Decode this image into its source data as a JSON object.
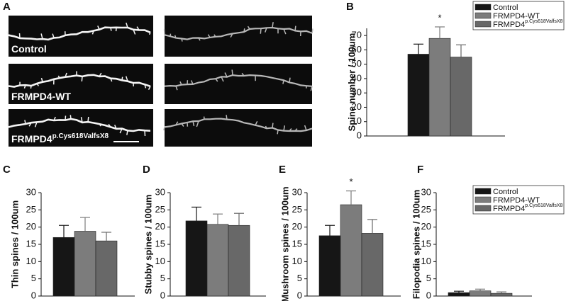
{
  "figure_a": {
    "panel": "A",
    "images": [
      {
        "label": "Control"
      },
      {
        "label": "FRMPD4-WT"
      },
      {
        "label": "FRMPD4",
        "label_sup": "p.Cys618ValfsX8"
      }
    ]
  },
  "chart_data": [
    {
      "type": "bar",
      "panel": "B",
      "ylabel": "Spine number / 100um",
      "ylim": [
        0,
        75
      ],
      "yticks": [
        0,
        10,
        20,
        30,
        40,
        50,
        60,
        70
      ],
      "legend": true,
      "annotations": [
        {
          "text": "*",
          "over": "FRMPD4-WT"
        }
      ],
      "series": [
        {
          "name": "Control",
          "color": "#161616",
          "values": [
            57
          ],
          "errors": [
            7
          ]
        },
        {
          "name": "FRMPD4-WT",
          "color": "#7c7c7c",
          "values": [
            68
          ],
          "errors": [
            8
          ]
        },
        {
          "name": "FRMPD4",
          "name_sup": "p.Cys618ValfsX8",
          "color": "#686868",
          "values": [
            55
          ],
          "errors": [
            8.5
          ]
        }
      ]
    },
    {
      "type": "bar",
      "panel": "C",
      "ylabel": "Thin spines / 100um",
      "ylim": [
        0,
        30
      ],
      "yticks": [
        0,
        5,
        10,
        15,
        20,
        25,
        30
      ],
      "legend": false,
      "series": [
        {
          "name": "Control",
          "color": "#161616",
          "values": [
            17
          ],
          "errors": [
            3.5
          ]
        },
        {
          "name": "FRMPD4-WT",
          "color": "#7c7c7c",
          "values": [
            18.8
          ],
          "errors": [
            4
          ]
        },
        {
          "name": "FRMPD4",
          "name_sup": "p.Cys618ValfsX8",
          "color": "#686868",
          "values": [
            16
          ],
          "errors": [
            2.5
          ]
        }
      ]
    },
    {
      "type": "bar",
      "panel": "D",
      "ylabel": "Stubby spines / 100um",
      "ylim": [
        0,
        30
      ],
      "yticks": [
        0,
        5,
        10,
        15,
        20,
        25,
        30
      ],
      "legend": false,
      "series": [
        {
          "name": "Control",
          "color": "#161616",
          "values": [
            21.8
          ],
          "errors": [
            4
          ]
        },
        {
          "name": "FRMPD4-WT",
          "color": "#7c7c7c",
          "values": [
            20.8
          ],
          "errors": [
            3
          ]
        },
        {
          "name": "FRMPD4",
          "name_sup": "p.Cys618ValfsX8",
          "color": "#686868",
          "values": [
            20.5
          ],
          "errors": [
            3.5
          ]
        }
      ]
    },
    {
      "type": "bar",
      "panel": "E",
      "ylabel": "Mushroom spines / 100um",
      "ylim": [
        0,
        30
      ],
      "yticks": [
        0,
        5,
        10,
        15,
        20,
        25,
        30
      ],
      "legend": false,
      "annotations": [
        {
          "text": "*",
          "over": "FRMPD4-WT"
        }
      ],
      "series": [
        {
          "name": "Control",
          "color": "#161616",
          "values": [
            17.5
          ],
          "errors": [
            3
          ]
        },
        {
          "name": "FRMPD4-WT",
          "color": "#7c7c7c",
          "values": [
            26.5
          ],
          "errors": [
            4
          ]
        },
        {
          "name": "FRMPD4",
          "name_sup": "p.Cys618ValfsX8",
          "color": "#686868",
          "values": [
            18.2
          ],
          "errors": [
            4
          ]
        }
      ]
    },
    {
      "type": "bar",
      "panel": "F",
      "ylabel": "Filopodia spines / 100um",
      "ylim": [
        0,
        30
      ],
      "yticks": [
        0,
        5,
        10,
        15,
        20,
        25,
        30
      ],
      "legend": true,
      "series": [
        {
          "name": "Control",
          "color": "#161616",
          "values": [
            1
          ],
          "errors": [
            0.4
          ]
        },
        {
          "name": "FRMPD4-WT",
          "color": "#7c7c7c",
          "values": [
            1.5
          ],
          "errors": [
            0.5
          ]
        },
        {
          "name": "FRMPD4",
          "name_sup": "p.Cys618ValfsX8",
          "color": "#686868",
          "values": [
            0.8
          ],
          "errors": [
            0.4
          ]
        }
      ]
    }
  ]
}
